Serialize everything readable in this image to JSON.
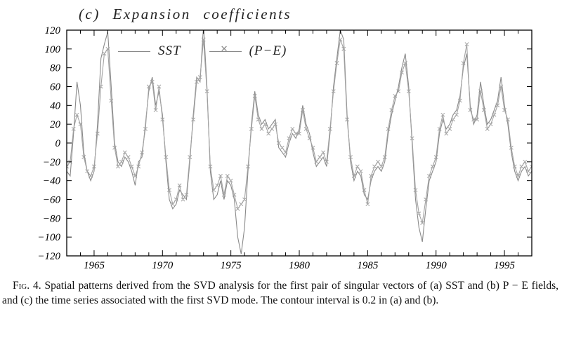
{
  "title": "(c) Expansion coefficients",
  "legend": {
    "sst": "SST",
    "pme": "(P−E)",
    "marker_glyph": "✕"
  },
  "caption": {
    "label": "Fig. 4.",
    "text": "Spatial patterns derived from the SVD analysis for the first pair of singular vectors of (a) SST and (b) P − E fields, and (c) the time series associated with the first SVD mode. The contour interval is 0.2 in (a) and (b)."
  },
  "chart_data": {
    "type": "line",
    "title": "(c) Expansion coefficients",
    "xlabel": "",
    "ylabel": "",
    "xlim": [
      1963,
      1997
    ],
    "ylim": [
      -120,
      120
    ],
    "grid": false,
    "legend_position": "top-left-inside",
    "x_start": 1963,
    "x_step": 0.25,
    "x_ticks": [
      {
        "v": 1965,
        "label": "1965"
      },
      {
        "v": 1970,
        "label": "1970"
      },
      {
        "v": 1975,
        "label": "1975"
      },
      {
        "v": 1980,
        "label": "1980"
      },
      {
        "v": 1985,
        "label": "1985"
      },
      {
        "v": 1990,
        "label": "1990"
      },
      {
        "v": 1995,
        "label": "1995"
      }
    ],
    "x_minor_step": 1,
    "y_ticks": [
      {
        "v": 120,
        "label": "120"
      },
      {
        "v": 100,
        "label": "100"
      },
      {
        "v": 80,
        "label": "80"
      },
      {
        "v": 60,
        "label": "60"
      },
      {
        "v": 40,
        "label": "40"
      },
      {
        "v": 20,
        "label": "20"
      },
      {
        "v": 0,
        "label": "0"
      },
      {
        "v": -20,
        "label": "−20"
      },
      {
        "v": -40,
        "label": "−40"
      },
      {
        "v": -60,
        "label": "−60"
      },
      {
        "v": -80,
        "label": "−80"
      },
      {
        "v": -100,
        "label": "−100"
      },
      {
        "v": -120,
        "label": "−120"
      }
    ],
    "colors": {
      "axis": "#000000",
      "sst_line": "#8a8a8a",
      "pme_line": "#a3a3a3"
    },
    "series": [
      {
        "name": "SST",
        "marker": "none",
        "color": "#8a8a8a",
        "width": 1.1,
        "values": [
          -30,
          -35,
          10,
          65,
          40,
          -10,
          -30,
          -40,
          -30,
          20,
          90,
          105,
          118,
          60,
          0,
          -20,
          -25,
          -15,
          -20,
          -30,
          -45,
          -20,
          -15,
          20,
          55,
          70,
          40,
          55,
          30,
          -20,
          -60,
          -70,
          -65,
          -50,
          -55,
          -60,
          -20,
          30,
          70,
          65,
          125,
          60,
          -30,
          -60,
          -55,
          -40,
          -60,
          -40,
          -45,
          -60,
          -100,
          -118,
          -90,
          -30,
          20,
          55,
          30,
          20,
          25,
          15,
          20,
          25,
          -5,
          -10,
          -15,
          0,
          10,
          5,
          15,
          40,
          20,
          10,
          -10,
          -25,
          -20,
          -15,
          -25,
          10,
          60,
          90,
          120,
          110,
          30,
          -20,
          -40,
          -30,
          -35,
          -55,
          -60,
          -40,
          -30,
          -25,
          -30,
          -20,
          10,
          30,
          45,
          60,
          80,
          95,
          60,
          0,
          -60,
          -90,
          -105,
          -70,
          -40,
          -30,
          -20,
          10,
          25,
          15,
          20,
          30,
          35,
          50,
          80,
          95,
          40,
          20,
          30,
          65,
          40,
          20,
          25,
          35,
          45,
          70,
          40,
          20,
          -10,
          -30,
          -40,
          -30,
          -25,
          -35,
          -30
        ]
      },
      {
        "name": "(P−E)",
        "marker": "x",
        "color": "#a3a3a3",
        "width": 1.1,
        "values": [
          -25,
          -20,
          15,
          30,
          20,
          -15,
          -30,
          -35,
          -25,
          10,
          60,
          95,
          100,
          45,
          -5,
          -25,
          -20,
          -10,
          -15,
          -25,
          -35,
          -25,
          -10,
          15,
          60,
          65,
          35,
          60,
          25,
          -15,
          -50,
          -65,
          -60,
          -45,
          -60,
          -55,
          -15,
          25,
          65,
          70,
          110,
          55,
          -25,
          -50,
          -45,
          -35,
          -55,
          -35,
          -40,
          -55,
          -70,
          -65,
          -60,
          -25,
          15,
          50,
          25,
          15,
          20,
          10,
          15,
          20,
          0,
          -5,
          -10,
          5,
          15,
          10,
          10,
          35,
          15,
          5,
          -5,
          -20,
          -15,
          -10,
          -20,
          15,
          55,
          85,
          110,
          100,
          25,
          -15,
          -35,
          -25,
          -30,
          -50,
          -65,
          -35,
          -25,
          -20,
          -25,
          -15,
          15,
          35,
          50,
          55,
          75,
          85,
          55,
          5,
          -50,
          -75,
          -85,
          -60,
          -35,
          -25,
          -15,
          15,
          30,
          10,
          15,
          25,
          30,
          45,
          85,
          105,
          35,
          25,
          25,
          55,
          35,
          15,
          20,
          30,
          40,
          60,
          35,
          25,
          -5,
          -25,
          -35,
          -25,
          -20,
          -30,
          -25
        ]
      }
    ]
  }
}
